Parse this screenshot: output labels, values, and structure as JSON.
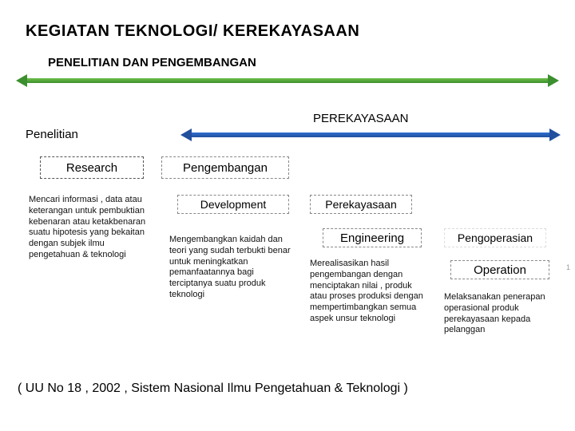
{
  "title": "KEGIATAN TEKNOLOGI/ KEREKAYASAAN",
  "subtitle": "PENELITIAN DAN PENGEMBANGAN",
  "arrows": {
    "top": {
      "gradient_start": "#6fbf4a",
      "gradient_end": "#3c8f2e",
      "tip_color": "#3c8f2e"
    },
    "mid": {
      "gradient_start": "#2e6fd1",
      "gradient_end": "#224f9e",
      "tip_color": "#224f9e"
    }
  },
  "labels": {
    "penelitian": "Penelitian",
    "perekayasaan": "PEREKAYASAAN"
  },
  "boxes": {
    "research": "Research",
    "pengembangan": "Pengembangan",
    "development": "Development",
    "perekayasaan2": "Perekayasaan",
    "engineering": "Engineering",
    "pengoperasian": "Pengoperasian",
    "operation": "Operation"
  },
  "descriptions": {
    "research": "Mencari informasi , data atau keterangan untuk pembuktian kebenaran atau ketakbenaran suatu hipotesis yang bekaitan dengan subjek  ilmu pengetahuan & teknologi",
    "development": "Mengembangkan kaidah dan teori yang sudah terbukti benar untuk meningkatkan pemanfaatannya bagi terciptanya suatu produk teknologi",
    "engineering": "Merealisasikan hasil pengembangan dengan menciptakan nilai , produk atau proses produksi dengan mempertimbangkan semua aspek unsur teknologi",
    "operation": "Melaksanakan penerapan operasional produk perekayasaan kepada pelanggan"
  },
  "footer": "( UU  No 18 , 2002 , Sistem Nasional  Ilmu Pengetahuan & Teknologi )",
  "page_number": "1"
}
